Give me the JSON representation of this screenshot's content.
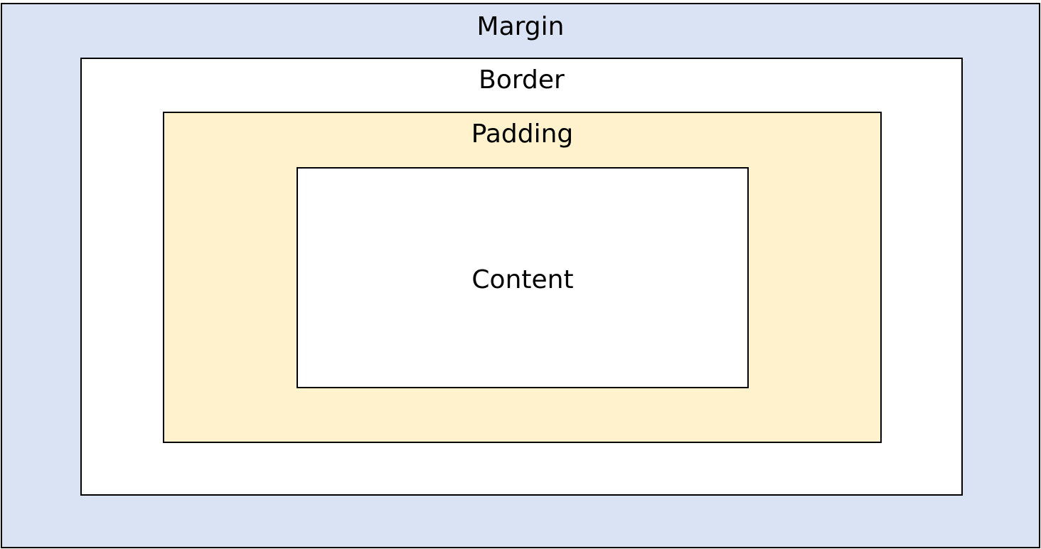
{
  "diagram": {
    "margin": {
      "label": "Margin",
      "color": "#dae3f3"
    },
    "border": {
      "label": "Border",
      "color": "#ffffff"
    },
    "padding": {
      "label": "Padding",
      "color": "#fff2cc"
    },
    "content": {
      "label": "Content",
      "color": "#ffffff"
    }
  }
}
